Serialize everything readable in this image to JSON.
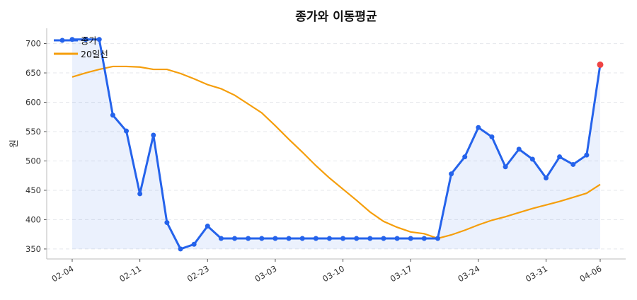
{
  "chart_data": {
    "type": "line",
    "title": "종가와 이동평균",
    "xlabel": "",
    "ylabel": "원",
    "ylim": [
      333,
      726
    ],
    "yticks": [
      350,
      400,
      450,
      500,
      550,
      600,
      650,
      700
    ],
    "xticks": [
      {
        "index": 0,
        "label": "02-04"
      },
      {
        "index": 5,
        "label": "02-11"
      },
      {
        "index": 10,
        "label": "02-23"
      },
      {
        "index": 15,
        "label": "03-03"
      },
      {
        "index": 20,
        "label": "03-10"
      },
      {
        "index": 25,
        "label": "03-17"
      },
      {
        "index": 30,
        "label": "03-24"
      },
      {
        "index": 35,
        "label": "03-31"
      },
      {
        "index": 39,
        "label": "04-06"
      }
    ],
    "grid": "horizontal-dashed",
    "legend_placement": "top-left",
    "series": [
      {
        "name": "종가",
        "color": "#2563eb",
        "markers": true,
        "fill": true,
        "last_point_color": "#ef4444",
        "values": [
          707,
          707,
          707,
          578,
          551,
          444,
          544,
          395,
          350,
          358,
          389,
          368,
          368,
          368,
          368,
          368,
          368,
          368,
          368,
          368,
          368,
          368,
          368,
          368,
          368,
          368,
          368,
          368,
          478,
          507,
          557,
          541,
          490,
          520,
          503,
          471,
          507,
          494,
          510,
          664
        ]
      },
      {
        "name": "20일선",
        "color": "#f59e0b",
        "markers": false,
        "values": [
          643,
          650,
          656,
          661,
          661,
          660,
          656,
          656,
          649,
          640,
          630,
          623,
          612,
          597,
          582,
          560,
          537,
          515,
          492,
          471,
          452,
          433,
          413,
          397,
          387,
          379,
          376,
          368,
          374,
          382,
          391,
          399,
          405,
          412,
          419,
          425,
          431,
          438,
          445,
          460
        ]
      }
    ]
  }
}
